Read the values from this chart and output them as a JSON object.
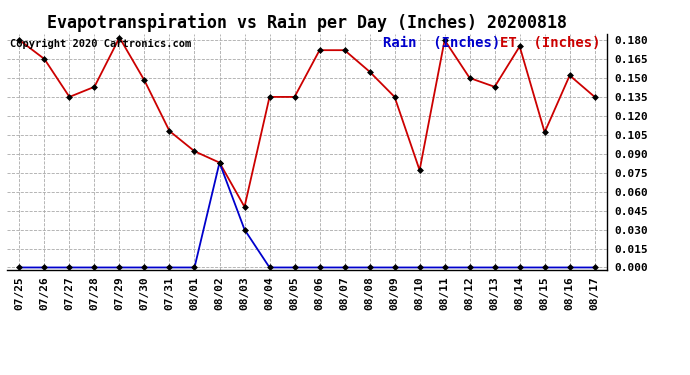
{
  "title": "Evapotranspiration vs Rain per Day (Inches) 20200818",
  "copyright": "Copyright 2020 Cartronics.com",
  "legend_rain": "Rain  (Inches)",
  "legend_et": "ET  (Inches)",
  "x_labels": [
    "07/25",
    "07/26",
    "07/27",
    "07/28",
    "07/29",
    "07/30",
    "07/31",
    "08/01",
    "08/02",
    "08/03",
    "08/04",
    "08/05",
    "08/06",
    "08/07",
    "08/08",
    "08/09",
    "08/10",
    "08/11",
    "08/12",
    "08/13",
    "08/14",
    "08/15",
    "08/16",
    "08/17"
  ],
  "et_values": [
    0.18,
    0.165,
    0.135,
    0.143,
    0.182,
    0.148,
    0.108,
    0.092,
    0.083,
    0.048,
    0.135,
    0.135,
    0.172,
    0.172,
    0.155,
    0.135,
    0.077,
    0.18,
    0.15,
    0.143,
    0.175,
    0.107,
    0.152,
    0.135
  ],
  "rain_values": [
    0.0,
    0.0,
    0.0,
    0.0,
    0.0,
    0.0,
    0.0,
    0.0,
    0.083,
    0.03,
    0.0,
    0.0,
    0.0,
    0.0,
    0.0,
    0.0,
    0.0,
    0.0,
    0.0,
    0.0,
    0.0,
    0.0,
    0.0,
    0.0
  ],
  "ylim": [
    -0.002,
    0.185
  ],
  "yticks": [
    0.0,
    0.015,
    0.03,
    0.045,
    0.06,
    0.075,
    0.09,
    0.105,
    0.12,
    0.135,
    0.15,
    0.165,
    0.18
  ],
  "et_color": "#cc0000",
  "rain_color": "#0000cc",
  "grid_color": "#aaaaaa",
  "background_color": "#ffffff",
  "title_fontsize": 12,
  "tick_fontsize": 8,
  "legend_fontsize": 10,
  "copyright_fontsize": 7.5
}
